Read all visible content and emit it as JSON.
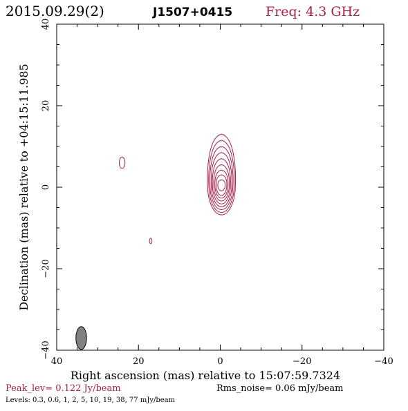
{
  "header": {
    "date": "2015.09.29(2)",
    "source": "J1507+0415",
    "freq": "Freq: 4.3 GHz"
  },
  "footer": {
    "peak": "Peak_lev=  0.122 Jy/beam",
    "rms": "Rms_noise= 0.06 mJy/beam",
    "levels": "Levels: 0.3, 0.6,    1,    2,    5,   10,   19,   38,   77 mJy/beam"
  },
  "colors": {
    "contour": "#a8204a",
    "beam_fill": "#808080",
    "accent_text": "#a8204a"
  },
  "chart_data": {
    "type": "contour",
    "title": "J1507+0415",
    "xlabel": "Right ascension (mas) relative to 15:07:59.7324",
    "ylabel": "Declination (mas) relative to +04:15:11.985",
    "xlim": [
      40,
      -40
    ],
    "ylim": [
      -40,
      40
    ],
    "xticks": [
      40,
      20,
      0,
      -20,
      -40
    ],
    "yticks": [
      40,
      20,
      0,
      -20,
      -40
    ],
    "xtick_labels": [
      "40",
      "20",
      "0",
      "−20",
      "−40"
    ],
    "ytick_labels": [
      "40",
      "20",
      "0",
      "−20",
      "−40"
    ],
    "levels_mJy": [
      0.3,
      0.6,
      1,
      2,
      5,
      10,
      19,
      38,
      77
    ],
    "peak_Jy_per_beam": 0.122,
    "rms_noise_mJy_per_beam": 0.06,
    "beam": {
      "x": 34,
      "y": -37,
      "major": 4.5,
      "minor": 2.0,
      "pa_deg": 0
    },
    "main_component": {
      "x_center": -0.3,
      "y_center": 0.5,
      "contours": [
        {
          "rx": 3.4,
          "y_top": 13.0,
          "y_bot": -6.8
        },
        {
          "rx": 3.1,
          "y_top": 11.5,
          "y_bot": -6.2
        },
        {
          "rx": 2.8,
          "y_top": 10.0,
          "y_bot": -5.5
        },
        {
          "rx": 2.5,
          "y_top": 8.5,
          "y_bot": -4.8
        },
        {
          "rx": 2.2,
          "y_top": 7.0,
          "y_bot": -4.1
        },
        {
          "rx": 1.9,
          "y_top": 5.5,
          "y_bot": -3.4
        },
        {
          "rx": 1.6,
          "y_top": 4.2,
          "y_bot": -2.7
        },
        {
          "rx": 1.3,
          "y_top": 3.0,
          "y_bot": -2.0
        },
        {
          "rx": 0.9,
          "y_top": 1.8,
          "y_bot": -0.9
        }
      ]
    },
    "minor_components": [
      {
        "x": 24,
        "y": 6,
        "rx": 0.7,
        "ry": 1.4
      },
      {
        "x": 17,
        "y": -13.2,
        "rx": 0.3,
        "ry": 0.7
      }
    ]
  }
}
